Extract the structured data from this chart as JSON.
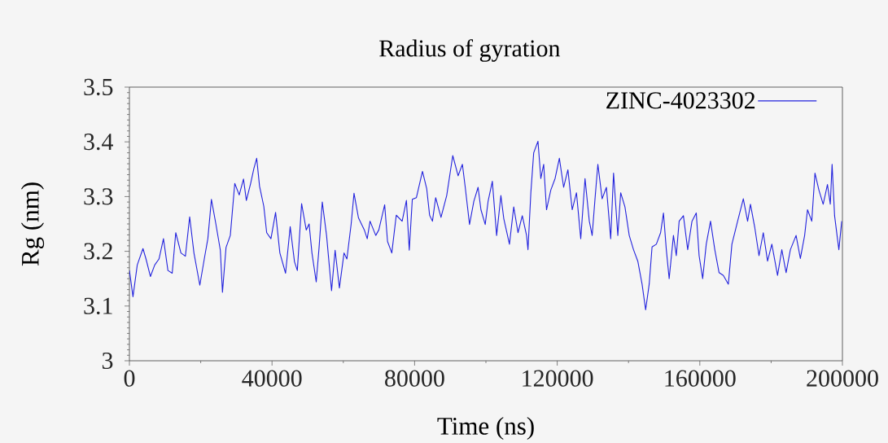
{
  "chart_data": {
    "type": "line",
    "title": "Radius of gyration",
    "xlabel": "Time (ns)",
    "ylabel": "Rg (nm)",
    "x": [
      0,
      1000,
      2200,
      3800,
      4650,
      5900,
      7100,
      8300,
      9550,
      10800,
      12000,
      13000,
      14450,
      15700,
      16900,
      18100,
      19750,
      21000,
      22000,
      23000,
      24250,
      25500,
      26100,
      27100,
      28300,
      29550,
      30800,
      32000,
      32800,
      34000,
      34900,
      35700,
      36500,
      37700,
      38500,
      39700,
      41000,
      42200,
      43800,
      45100,
      46300,
      47100,
      48300,
      49600,
      50400,
      51200,
      52400,
      53200,
      54100,
      55300,
      56700,
      57700,
      58900,
      60200,
      61000,
      62200,
      63000,
      64250,
      65900,
      66700,
      67500,
      69100,
      69950,
      71600,
      72400,
      73600,
      74850,
      76500,
      77700,
      78500,
      79350,
      80500,
      82200,
      83400,
      84200,
      85000,
      85900,
      87400,
      89000,
      90700,
      92200,
      93400,
      94200,
      95400,
      96600,
      97800,
      98600,
      99800,
      100600,
      101800,
      103000,
      104200,
      105000,
      106600,
      107800,
      109000,
      110200,
      111400,
      111800,
      112600,
      113400,
      114600,
      115400,
      116200,
      117000,
      118200,
      119400,
      120600,
      121800,
      123000,
      124200,
      125400,
      126600,
      127800,
      129000,
      129800,
      130600,
      131400,
      132600,
      133800,
      135000,
      135800,
      137000,
      137800,
      139000,
      140200,
      141400,
      142600,
      143800,
      144800,
      145800,
      146600,
      147800,
      149000,
      149800,
      150600,
      151400,
      152600,
      153400,
      154200,
      155400,
      156600,
      157800,
      159000,
      159800,
      160800,
      161800,
      163000,
      164200,
      165400,
      166600,
      168000,
      169000,
      170600,
      172200,
      173400,
      174200,
      175400,
      176600,
      177800,
      179000,
      180200,
      181800,
      183000,
      184200,
      185400,
      187000,
      188200,
      189400,
      190200,
      191400,
      192300,
      193400,
      194600,
      195800,
      196600,
      197100,
      197800,
      199000,
      199800
    ],
    "series": [
      {
        "name": "ZINC-4023302",
        "color": "#2222dd",
        "values": [
          3.165,
          3.117,
          3.175,
          3.205,
          3.186,
          3.154,
          3.175,
          3.186,
          3.223,
          3.165,
          3.16,
          3.234,
          3.197,
          3.191,
          3.263,
          3.197,
          3.138,
          3.186,
          3.223,
          3.295,
          3.25,
          3.202,
          3.125,
          3.207,
          3.229,
          3.324,
          3.303,
          3.332,
          3.293,
          3.324,
          3.351,
          3.37,
          3.319,
          3.282,
          3.234,
          3.223,
          3.271,
          3.197,
          3.16,
          3.245,
          3.181,
          3.165,
          3.287,
          3.239,
          3.25,
          3.197,
          3.144,
          3.207,
          3.29,
          3.229,
          3.128,
          3.202,
          3.133,
          3.197,
          3.186,
          3.25,
          3.306,
          3.261,
          3.239,
          3.223,
          3.255,
          3.229,
          3.239,
          3.285,
          3.218,
          3.197,
          3.266,
          3.255,
          3.293,
          3.202,
          3.295,
          3.298,
          3.346,
          3.314,
          3.266,
          3.255,
          3.298,
          3.262,
          3.302,
          3.375,
          3.338,
          3.359,
          3.317,
          3.249,
          3.291,
          3.317,
          3.276,
          3.249,
          3.291,
          3.328,
          3.229,
          3.302,
          3.26,
          3.213,
          3.281,
          3.234,
          3.265,
          3.229,
          3.203,
          3.307,
          3.38,
          3.401,
          3.333,
          3.359,
          3.276,
          3.312,
          3.333,
          3.37,
          3.317,
          3.349,
          3.276,
          3.307,
          3.223,
          3.333,
          3.255,
          3.229,
          3.296,
          3.359,
          3.296,
          3.317,
          3.223,
          3.343,
          3.229,
          3.307,
          3.281,
          3.229,
          3.203,
          3.182,
          3.14,
          3.093,
          3.14,
          3.208,
          3.213,
          3.234,
          3.27,
          3.203,
          3.15,
          3.229,
          3.192,
          3.255,
          3.265,
          3.203,
          3.255,
          3.27,
          3.192,
          3.15,
          3.213,
          3.255,
          3.203,
          3.161,
          3.156,
          3.14,
          3.213,
          3.255,
          3.296,
          3.255,
          3.286,
          3.244,
          3.192,
          3.234,
          3.182,
          3.213,
          3.156,
          3.203,
          3.161,
          3.203,
          3.229,
          3.187,
          3.229,
          3.276,
          3.255,
          3.343,
          3.312,
          3.286,
          3.322,
          3.286,
          3.359,
          3.265,
          3.203,
          3.255
        ]
      }
    ],
    "xlim": [
      0,
      200000
    ],
    "ylim": [
      3,
      3.5
    ],
    "xticks": [
      0,
      40000,
      80000,
      120000,
      160000,
      200000
    ],
    "yticks": [
      3,
      3.1,
      3.2,
      3.3,
      3.4,
      3.5
    ],
    "legend": "top right",
    "marker": "none",
    "line_style": "solid"
  }
}
